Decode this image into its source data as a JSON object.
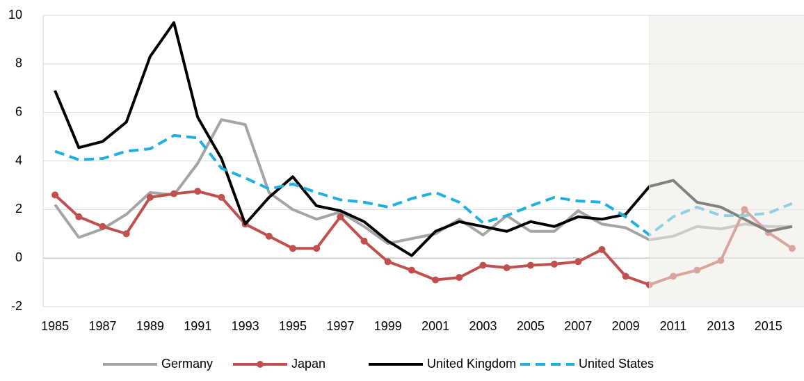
{
  "chart_data": {
    "type": "line",
    "categories": [
      "1985",
      null,
      "1987",
      null,
      "1989",
      null,
      "1991",
      null,
      "1993",
      null,
      "1995",
      null,
      "1997",
      null,
      "1999",
      null,
      "2001",
      null,
      "2003",
      null,
      "2005",
      null,
      "2007",
      null,
      "2009",
      null,
      "2011",
      null,
      "2013",
      null,
      "2015",
      null
    ],
    "series": [
      {
        "name": "Germany",
        "color": "#a5a5a5",
        "values": [
          2.2,
          0.85,
          1.2,
          1.8,
          2.7,
          2.6,
          3.9,
          5.7,
          5.5,
          2.7,
          2.0,
          1.6,
          1.9,
          1.3,
          0.6,
          0.8,
          1.0,
          1.6,
          0.95,
          1.75,
          1.1,
          1.1,
          1.95,
          1.4,
          1.25,
          0.75,
          0.9,
          1.3,
          1.2,
          1.4,
          1.3,
          1.3
        ]
      },
      {
        "name": "Japan",
        "color": "#c0504d",
        "marker": "circle",
        "values": [
          2.6,
          1.7,
          1.3,
          1.0,
          2.5,
          2.65,
          2.75,
          2.5,
          1.4,
          0.9,
          0.4,
          0.4,
          1.7,
          0.7,
          -0.15,
          -0.5,
          -0.9,
          -0.8,
          -0.3,
          -0.4,
          -0.3,
          -0.25,
          -0.15,
          0.35,
          -0.75,
          -1.1,
          -0.75,
          -0.5,
          -0.1,
          2.0,
          1.05,
          0.4
        ]
      },
      {
        "name": "United Kingdom",
        "color": "#000000",
        "values": [
          6.9,
          4.55,
          4.8,
          5.6,
          8.3,
          9.7,
          5.8,
          4.1,
          1.4,
          2.5,
          3.35,
          2.15,
          1.95,
          1.5,
          0.7,
          0.1,
          1.1,
          1.5,
          1.3,
          1.1,
          1.5,
          1.3,
          1.7,
          1.6,
          1.8,
          2.95,
          3.2,
          2.3,
          2.1,
          1.6,
          1.1,
          1.3
        ]
      },
      {
        "name": "United States",
        "color": "#1fb0e0",
        "dash": true,
        "values": [
          4.4,
          4.05,
          4.1,
          4.4,
          4.5,
          5.05,
          4.95,
          3.7,
          3.3,
          2.85,
          3.05,
          2.7,
          2.4,
          2.3,
          2.1,
          2.45,
          2.7,
          2.3,
          1.45,
          1.75,
          2.15,
          2.5,
          2.35,
          2.3,
          1.7,
          0.95,
          1.7,
          2.1,
          1.75,
          1.75,
          1.85,
          2.25
        ]
      }
    ],
    "ylim": [
      -2,
      10
    ],
    "yticks": [
      -2,
      0,
      2,
      4,
      6,
      8,
      10
    ],
    "grid": true,
    "shaded_from_index": 25,
    "shade_color": "#eeebe3",
    "legend": "bottom"
  }
}
